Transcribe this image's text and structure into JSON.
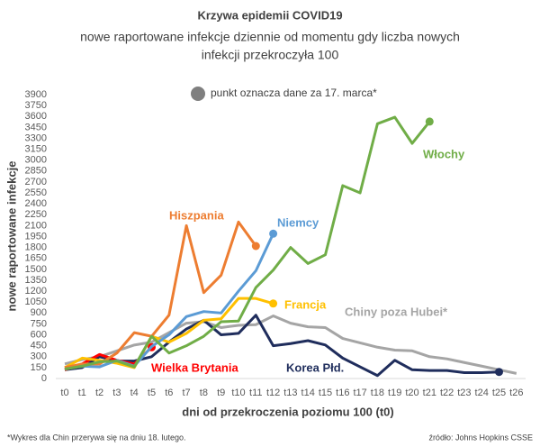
{
  "chart_data": {
    "type": "line",
    "title": "Krzywa epidemii COVID19",
    "subtitle": [
      "nowe raportowane infekcje dziennie od momentu gdy liczba nowych",
      "infekcji przekroczyła 100"
    ],
    "annotation": "punkt oznacza dane za 17. marca*",
    "footnote": "*Wykres dla Chin przerywa się na dniu 18. lutego.",
    "source": "źródło: Johns Hopkins CSSE",
    "xlabel": "dni od przekroczenia poziomu 100 (t0)",
    "ylabel": "nowe raportowane infekcje",
    "categories": [
      "t0",
      "t1",
      "t2",
      "t3",
      "t4",
      "t5",
      "t6",
      "t7",
      "t8",
      "t9",
      "t10",
      "t11",
      "t12",
      "t13",
      "t14",
      "t15",
      "t16",
      "t17",
      "t18",
      "t19",
      "t20",
      "t21",
      "t22",
      "t23",
      "t24",
      "t25",
      "t26"
    ],
    "ylim": [
      0,
      3900
    ],
    "yticks": [
      0,
      150,
      300,
      450,
      600,
      750,
      900,
      1050,
      1200,
      1350,
      1500,
      1650,
      1800,
      1950,
      2100,
      2250,
      2400,
      2550,
      2700,
      2850,
      3000,
      3150,
      3300,
      3450,
      3600,
      3750,
      3900
    ],
    "grid": false,
    "series": [
      {
        "name": "Chiny poza Hubei*",
        "color": "#a5a5a5",
        "end_marker": false,
        "values": [
          200,
          260,
          300,
          380,
          460,
          500,
          630,
          760,
          780,
          700,
          730,
          740,
          860,
          760,
          710,
          700,
          550,
          490,
          430,
          390,
          380,
          300,
          270,
          220,
          170,
          120,
          70
        ]
      },
      {
        "name": "Korea Płd.",
        "color": "#1f2d5c",
        "end_marker": true,
        "values": [
          120,
          150,
          300,
          240,
          240,
          300,
          500,
          680,
          800,
          600,
          620,
          870,
          450,
          480,
          520,
          460,
          280,
          160,
          40,
          250,
          120,
          110,
          110,
          80,
          80,
          90,
          null
        ]
      },
      {
        "name": "Wielka Brytania",
        "color": "#ff0000",
        "end_marker": true,
        "values": [
          120,
          200,
          330,
          250,
          200,
          430,
          null,
          null,
          null,
          null,
          null,
          null,
          null,
          null,
          null,
          null,
          null,
          null,
          null,
          null,
          null,
          null,
          null,
          null,
          null,
          null,
          null
        ]
      },
      {
        "name": "Francja",
        "color": "#ffc000",
        "end_marker": true,
        "values": [
          150,
          280,
          250,
          210,
          150,
          580,
          500,
          620,
          800,
          820,
          1100,
          1100,
          1030,
          null,
          null,
          null,
          null,
          null,
          null,
          null,
          null,
          null,
          null,
          null,
          null,
          null,
          null
        ]
      },
      {
        "name": "Niemcy",
        "color": "#5b9bd5",
        "end_marker": true,
        "values": [
          130,
          170,
          160,
          250,
          170,
          440,
          600,
          850,
          920,
          900,
          1200,
          1480,
          1990,
          null,
          null,
          null,
          null,
          null,
          null,
          null,
          null,
          null,
          null,
          null,
          null,
          null,
          null
        ]
      },
      {
        "name": "Hiszpania",
        "color": "#ed7d31",
        "end_marker": true,
        "values": [
          150,
          200,
          200,
          350,
          630,
          580,
          870,
          2100,
          1180,
          1420,
          2150,
          1820,
          null,
          null,
          null,
          null,
          null,
          null,
          null,
          null,
          null,
          null,
          null,
          null,
          null,
          null,
          null
        ]
      },
      {
        "name": "Włochy",
        "color": "#70ad47",
        "end_marker": true,
        "values": [
          130,
          170,
          230,
          240,
          160,
          580,
          350,
          450,
          580,
          780,
          790,
          1250,
          1490,
          1800,
          1580,
          1700,
          2650,
          2550,
          3500,
          3590,
          3230,
          3530,
          null,
          null,
          null,
          null,
          null
        ]
      }
    ]
  }
}
